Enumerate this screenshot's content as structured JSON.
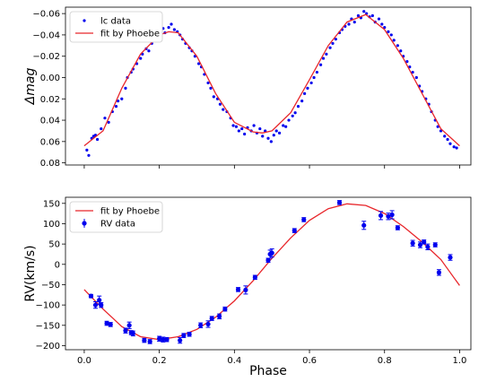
{
  "chart_data": [
    {
      "type": "scatter",
      "xlabel": "",
      "ylabel": "Δmag",
      "xlim": [
        -0.05,
        1.03
      ],
      "ylim": [
        0.082,
        -0.066
      ],
      "y_inverted": true,
      "y_ticks": [
        -0.06,
        -0.04,
        -0.02,
        0.0,
        0.02,
        0.04,
        0.06,
        0.08
      ],
      "y_tick_labels": [
        "−0.06",
        "−0.04",
        "−0.02",
        "0.00",
        "0.02",
        "0.04",
        "0.06",
        "0.08"
      ],
      "x_ticks": [
        0.0,
        0.2,
        0.4,
        0.6,
        0.8,
        1.0
      ],
      "x_tick_labels_shown": false,
      "legend": {
        "placement": "upper-left",
        "entries": [
          "lc data",
          "fit by Phoebe"
        ]
      },
      "grid": false,
      "series": [
        {
          "name": "lc data",
          "style": "points",
          "color": "#0000ee",
          "points": [
            [
              0.007,
              0.068
            ],
            [
              0.012,
              0.073
            ],
            [
              0.02,
              0.057
            ],
            [
              0.025,
              0.055
            ],
            [
              0.03,
              0.054
            ],
            [
              0.035,
              0.058
            ],
            [
              0.045,
              0.048
            ],
            [
              0.055,
              0.038
            ],
            [
              0.065,
              0.042
            ],
            [
              0.075,
              0.032
            ],
            [
              0.085,
              0.027
            ],
            [
              0.09,
              0.022
            ],
            [
              0.1,
              0.02
            ],
            [
              0.11,
              0.01
            ],
            [
              0.115,
              0.0
            ],
            [
              0.125,
              -0.005
            ],
            [
              0.13,
              -0.008
            ],
            [
              0.14,
              -0.013
            ],
            [
              0.15,
              -0.018
            ],
            [
              0.155,
              -0.022
            ],
            [
              0.165,
              -0.027
            ],
            [
              0.172,
              -0.025
            ],
            [
              0.18,
              -0.032
            ],
            [
              0.19,
              -0.037
            ],
            [
              0.2,
              -0.04
            ],
            [
              0.21,
              -0.046
            ],
            [
              0.215,
              -0.042
            ],
            [
              0.225,
              -0.047
            ],
            [
              0.232,
              -0.05
            ],
            [
              0.24,
              -0.045
            ],
            [
              0.248,
              -0.043
            ],
            [
              0.255,
              -0.04
            ],
            [
              0.262,
              -0.036
            ],
            [
              0.27,
              -0.032
            ],
            [
              0.28,
              -0.028
            ],
            [
              0.287,
              -0.025
            ],
            [
              0.295,
              -0.02
            ],
            [
              0.305,
              -0.013
            ],
            [
              0.312,
              -0.01
            ],
            [
              0.32,
              -0.003
            ],
            [
              0.33,
              0.005
            ],
            [
              0.337,
              0.01
            ],
            [
              0.345,
              0.018
            ],
            [
              0.355,
              0.02
            ],
            [
              0.362,
              0.025
            ],
            [
              0.37,
              0.03
            ],
            [
              0.38,
              0.032
            ],
            [
              0.39,
              0.038
            ],
            [
              0.397,
              0.045
            ],
            [
              0.405,
              0.046
            ],
            [
              0.412,
              0.05
            ],
            [
              0.42,
              0.048
            ],
            [
              0.427,
              0.053
            ],
            [
              0.435,
              0.047
            ],
            [
              0.445,
              0.05
            ],
            [
              0.452,
              0.045
            ],
            [
              0.46,
              0.052
            ],
            [
              0.468,
              0.048
            ],
            [
              0.475,
              0.055
            ],
            [
              0.482,
              0.05
            ],
            [
              0.49,
              0.057
            ],
            [
              0.498,
              0.06
            ],
            [
              0.505,
              0.054
            ],
            [
              0.512,
              0.05
            ],
            [
              0.52,
              0.052
            ],
            [
              0.53,
              0.045
            ],
            [
              0.537,
              0.046
            ],
            [
              0.545,
              0.04
            ],
            [
              0.555,
              0.036
            ],
            [
              0.562,
              0.033
            ],
            [
              0.57,
              0.027
            ],
            [
              0.58,
              0.022
            ],
            [
              0.587,
              0.015
            ],
            [
              0.595,
              0.01
            ],
            [
              0.605,
              0.005
            ],
            [
              0.612,
              0.0
            ],
            [
              0.62,
              -0.005
            ],
            [
              0.63,
              -0.012
            ],
            [
              0.637,
              -0.018
            ],
            [
              0.645,
              -0.022
            ],
            [
              0.655,
              -0.028
            ],
            [
              0.662,
              -0.032
            ],
            [
              0.67,
              -0.036
            ],
            [
              0.68,
              -0.042
            ],
            [
              0.687,
              -0.045
            ],
            [
              0.695,
              -0.048
            ],
            [
              0.705,
              -0.05
            ],
            [
              0.712,
              -0.055
            ],
            [
              0.72,
              -0.052
            ],
            [
              0.73,
              -0.058
            ],
            [
              0.737,
              -0.056
            ],
            [
              0.745,
              -0.062
            ],
            [
              0.752,
              -0.06
            ],
            [
              0.76,
              -0.057
            ],
            [
              0.768,
              -0.058
            ],
            [
              0.775,
              -0.052
            ],
            [
              0.785,
              -0.055
            ],
            [
              0.793,
              -0.05
            ],
            [
              0.8,
              -0.047
            ],
            [
              0.81,
              -0.043
            ],
            [
              0.818,
              -0.04
            ],
            [
              0.825,
              -0.035
            ],
            [
              0.835,
              -0.03
            ],
            [
              0.843,
              -0.025
            ],
            [
              0.85,
              -0.02
            ],
            [
              0.86,
              -0.015
            ],
            [
              0.867,
              -0.01
            ],
            [
              0.875,
              -0.005
            ],
            [
              0.885,
              0.0
            ],
            [
              0.893,
              0.008
            ],
            [
              0.9,
              0.013
            ],
            [
              0.91,
              0.02
            ],
            [
              0.918,
              0.025
            ],
            [
              0.925,
              0.032
            ],
            [
              0.935,
              0.04
            ],
            [
              0.942,
              0.046
            ],
            [
              0.95,
              0.05
            ],
            [
              0.96,
              0.055
            ],
            [
              0.968,
              0.058
            ],
            [
              0.975,
              0.062
            ],
            [
              0.985,
              0.065
            ],
            [
              0.992,
              0.066
            ]
          ]
        },
        {
          "name": "fit by Phoebe",
          "style": "line",
          "color": "#e8262b",
          "points": [
            [
              0.0,
              0.064
            ],
            [
              0.05,
              0.05
            ],
            [
              0.1,
              0.01
            ],
            [
              0.15,
              -0.022
            ],
            [
              0.2,
              -0.04
            ],
            [
              0.225,
              -0.043
            ],
            [
              0.25,
              -0.042
            ],
            [
              0.3,
              -0.02
            ],
            [
              0.35,
              0.015
            ],
            [
              0.4,
              0.042
            ],
            [
              0.45,
              0.051
            ],
            [
              0.475,
              0.052
            ],
            [
              0.5,
              0.05
            ],
            [
              0.55,
              0.033
            ],
            [
              0.6,
              0.002
            ],
            [
              0.65,
              -0.03
            ],
            [
              0.7,
              -0.052
            ],
            [
              0.75,
              -0.059
            ],
            [
              0.8,
              -0.045
            ],
            [
              0.85,
              -0.018
            ],
            [
              0.9,
              0.015
            ],
            [
              0.95,
              0.048
            ],
            [
              1.0,
              0.064
            ]
          ]
        }
      ]
    },
    {
      "type": "scatter",
      "xlabel": "Phase",
      "ylabel": "RV(km/s)",
      "xlim": [
        -0.05,
        1.03
      ],
      "ylim": [
        -210,
        165
      ],
      "y_ticks": [
        -200,
        -150,
        -100,
        -50,
        0,
        50,
        100,
        150
      ],
      "y_tick_labels": [
        "−200",
        "−150",
        "−100",
        "−50",
        "0",
        "50",
        "100",
        "150"
      ],
      "x_ticks": [
        0.0,
        0.2,
        0.4,
        0.6,
        0.8,
        1.0
      ],
      "x_tick_labels": [
        "0.0",
        "0.2",
        "0.4",
        "0.6",
        "0.8",
        "1.0"
      ],
      "legend": {
        "placement": "upper-left",
        "entries": [
          "fit by Phoebe",
          "RV data"
        ]
      },
      "grid": false,
      "series": [
        {
          "name": "fit by Phoebe",
          "style": "line",
          "color": "#e8262b",
          "points": [
            [
              0.0,
              -62
            ],
            [
              0.05,
              -110
            ],
            [
              0.1,
              -153
            ],
            [
              0.15,
              -178
            ],
            [
              0.2,
              -185
            ],
            [
              0.25,
              -178
            ],
            [
              0.3,
              -160
            ],
            [
              0.35,
              -130
            ],
            [
              0.4,
              -90
            ],
            [
              0.45,
              -40
            ],
            [
              0.5,
              15
            ],
            [
              0.55,
              65
            ],
            [
              0.6,
              108
            ],
            [
              0.65,
              137
            ],
            [
              0.7,
              149
            ],
            [
              0.75,
              145
            ],
            [
              0.8,
              125
            ],
            [
              0.85,
              93
            ],
            [
              0.9,
              55
            ],
            [
              0.95,
              12
            ],
            [
              1.0,
              -52
            ]
          ]
        },
        {
          "name": "RV data",
          "style": "errorbar",
          "color": "#0000ee",
          "points": [
            [
              0.018,
              -78,
              4
            ],
            [
              0.03,
              -100,
              8
            ],
            [
              0.04,
              -88,
              10
            ],
            [
              0.045,
              -100,
              6
            ],
            [
              0.06,
              -145,
              5
            ],
            [
              0.07,
              -148,
              5
            ],
            [
              0.11,
              -163,
              6
            ],
            [
              0.12,
              -150,
              8
            ],
            [
              0.125,
              -168,
              5
            ],
            [
              0.13,
              -170,
              6
            ],
            [
              0.16,
              -187,
              5
            ],
            [
              0.175,
              -190,
              5
            ],
            [
              0.2,
              -183,
              6
            ],
            [
              0.21,
              -185,
              6
            ],
            [
              0.22,
              -185,
              5
            ],
            [
              0.255,
              -187,
              7
            ],
            [
              0.265,
              -175,
              5
            ],
            [
              0.28,
              -172,
              5
            ],
            [
              0.31,
              -150,
              6
            ],
            [
              0.33,
              -147,
              8
            ],
            [
              0.34,
              -133,
              5
            ],
            [
              0.36,
              -128,
              6
            ],
            [
              0.375,
              -110,
              5
            ],
            [
              0.41,
              -62,
              5
            ],
            [
              0.43,
              -63,
              10
            ],
            [
              0.455,
              -32,
              5
            ],
            [
              0.49,
              10,
              5
            ],
            [
              0.495,
              25,
              10
            ],
            [
              0.5,
              28,
              10
            ],
            [
              0.56,
              83,
              5
            ],
            [
              0.585,
              110,
              5
            ],
            [
              0.68,
              152,
              5
            ],
            [
              0.745,
              96,
              10
            ],
            [
              0.79,
              120,
              10
            ],
            [
              0.81,
              118,
              8
            ],
            [
              0.82,
              122,
              10
            ],
            [
              0.835,
              90,
              5
            ],
            [
              0.875,
              52,
              7
            ],
            [
              0.895,
              48,
              7
            ],
            [
              0.905,
              55,
              5
            ],
            [
              0.915,
              43,
              7
            ],
            [
              0.935,
              48,
              5
            ],
            [
              0.945,
              -20,
              7
            ],
            [
              0.975,
              17,
              7
            ]
          ]
        }
      ]
    }
  ]
}
